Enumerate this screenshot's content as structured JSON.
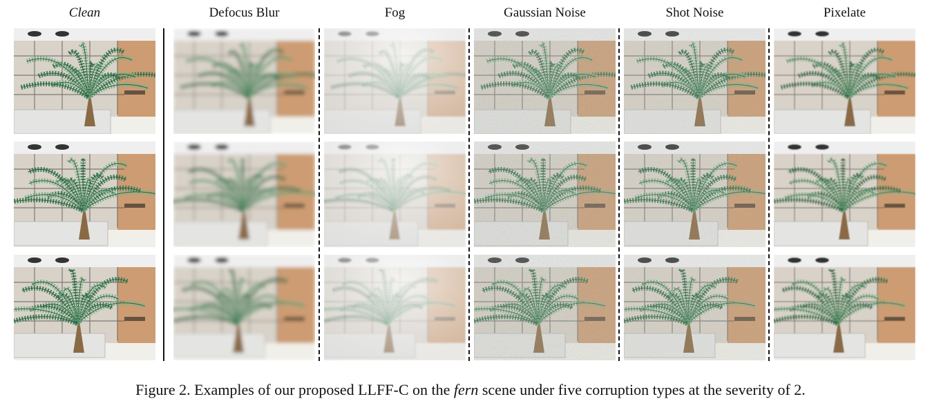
{
  "columns": [
    {
      "label": "Clean",
      "style": "italic",
      "effect": "clean"
    },
    {
      "label": "Defocus Blur",
      "style": "normal",
      "effect": "blur"
    },
    {
      "label": "Fog",
      "style": "normal",
      "effect": "fog"
    },
    {
      "label": "Gaussian Noise",
      "style": "normal",
      "effect": "gauss"
    },
    {
      "label": "Shot Noise",
      "style": "normal",
      "effect": "shot"
    },
    {
      "label": "Pixelate",
      "style": "normal",
      "effect": "pixel"
    }
  ],
  "rows": 3,
  "caption": {
    "prefix": "Figure 2. Examples of our proposed LLFF-C on the ",
    "emph": "fern",
    "suffix": " scene under five corruption types at the severity of 2."
  },
  "colors": {
    "leaf": "#3f7e58",
    "leaf_light": "#7fb38a",
    "planter": "#e4e4e2",
    "wall_warm": "#c88a55",
    "background": "#d9d2c8"
  }
}
